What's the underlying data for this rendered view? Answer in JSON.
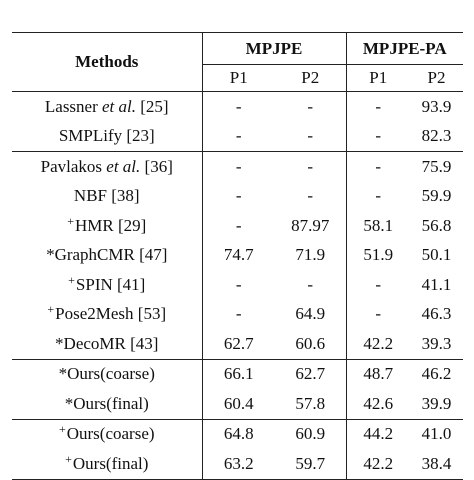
{
  "table": {
    "header": {
      "methods": "Methods",
      "groups": [
        "MPJPE",
        "MPJPE-PA"
      ],
      "sub": [
        "P1",
        "P2",
        "P1",
        "P2"
      ]
    },
    "groups": [
      [
        {
          "prefix": "",
          "name": "Lassner ",
          "italic": "et al.",
          "ref": " [25]",
          "vals": [
            "-",
            "-",
            "-",
            "93.9"
          ],
          "bold": [
            false,
            false,
            false,
            false
          ]
        },
        {
          "prefix": "",
          "name": "SMPLify [23]",
          "italic": "",
          "ref": "",
          "vals": [
            "-",
            "-",
            "-",
            "82.3"
          ],
          "bold": [
            false,
            false,
            false,
            false
          ]
        }
      ],
      [
        {
          "prefix": "",
          "name": "Pavlakos ",
          "italic": "et al.",
          "ref": " [36]",
          "vals": [
            "-",
            "-",
            "-",
            "75.9"
          ],
          "bold": [
            false,
            false,
            false,
            false
          ]
        },
        {
          "prefix": "",
          "name": "NBF [38]",
          "italic": "",
          "ref": "",
          "vals": [
            "-",
            "-",
            "-",
            "59.9"
          ],
          "bold": [
            false,
            false,
            false,
            false
          ]
        },
        {
          "prefix": "+",
          "name": "HMR [29]",
          "italic": "",
          "ref": "",
          "vals": [
            "-",
            "87.97",
            "58.1",
            "56.8"
          ],
          "bold": [
            false,
            false,
            false,
            false
          ]
        },
        {
          "prefix": "*",
          "name": "GraphCMR [47]",
          "italic": "",
          "ref": "",
          "vals": [
            "74.7",
            "71.9",
            "51.9",
            "50.1"
          ],
          "bold": [
            false,
            false,
            false,
            false
          ]
        },
        {
          "prefix": "+",
          "name": "SPIN [41]",
          "italic": "",
          "ref": "",
          "vals": [
            "-",
            "-",
            "-",
            "41.1"
          ],
          "bold": [
            false,
            false,
            false,
            false
          ]
        },
        {
          "prefix": "+",
          "name": "Pose2Mesh [53]",
          "italic": "",
          "ref": "",
          "vals": [
            "-",
            "64.9",
            "-",
            "46.3"
          ],
          "bold": [
            false,
            false,
            false,
            false
          ]
        },
        {
          "prefix": "*",
          "name": "DecoMR [43]",
          "italic": "",
          "ref": "",
          "vals": [
            "62.7",
            "60.6",
            "42.2",
            "39.3"
          ],
          "bold": [
            false,
            false,
            true,
            false
          ]
        }
      ],
      [
        {
          "prefix": "*",
          "name": "Ours(coarse)",
          "italic": "",
          "ref": "",
          "vals": [
            "66.1",
            "62.7",
            "48.7",
            "46.2"
          ],
          "bold": [
            false,
            false,
            false,
            false
          ]
        },
        {
          "prefix": "*",
          "name": "Ours(final)",
          "italic": "",
          "ref": "",
          "vals": [
            "60.4",
            "57.8",
            "42.6",
            "39.9"
          ],
          "bold": [
            true,
            true,
            false,
            false
          ]
        }
      ],
      [
        {
          "prefix": "+",
          "name": "Ours(coarse)",
          "italic": "",
          "ref": "",
          "vals": [
            "64.8",
            "60.9",
            "44.2",
            "41.0"
          ],
          "bold": [
            false,
            false,
            false,
            false
          ]
        },
        {
          "prefix": "+",
          "name": "Ours(final)",
          "italic": "",
          "ref": "",
          "vals": [
            "63.2",
            "59.7",
            "42.2",
            "38.4"
          ],
          "bold": [
            false,
            false,
            true,
            true
          ]
        }
      ]
    ]
  }
}
